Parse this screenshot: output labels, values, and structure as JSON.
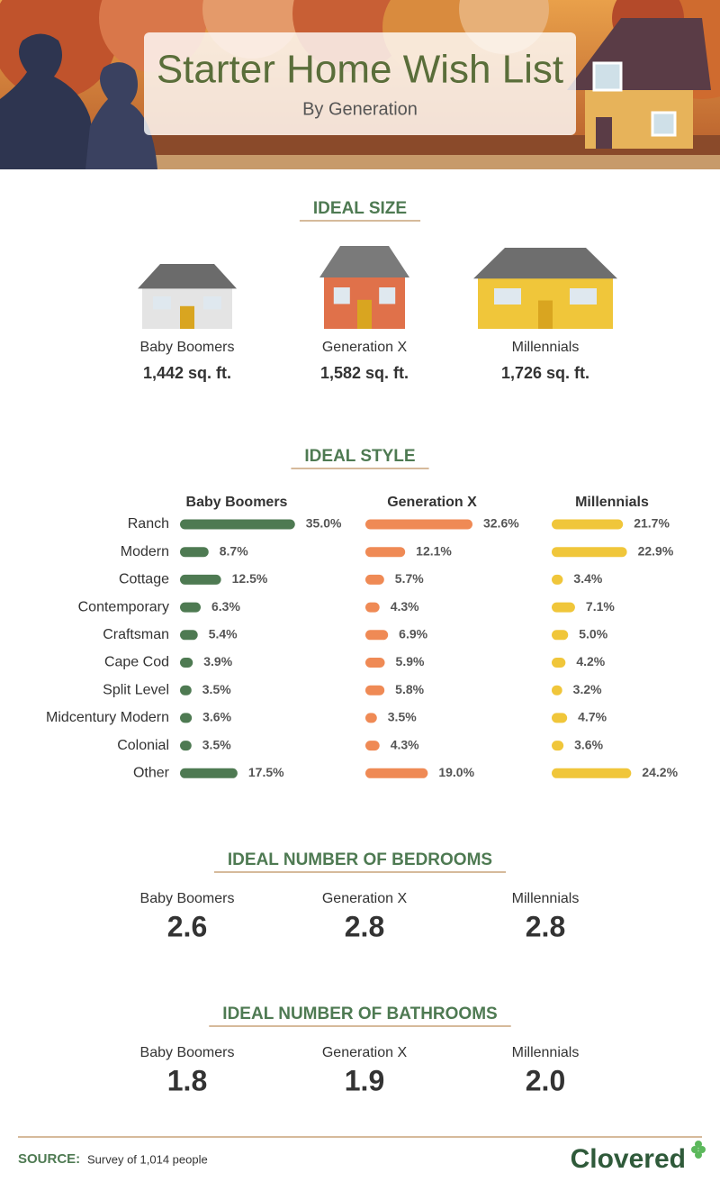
{
  "header": {
    "title": "Starter Home Wish List",
    "subtitle": "By Generation"
  },
  "ideal_size": {
    "heading": "IDEAL SIZE",
    "items": [
      {
        "name": "Baby Boomers",
        "value": "1,442 sq. ft."
      },
      {
        "name": "Generation X",
        "value": "1,582 sq. ft."
      },
      {
        "name": "Millennials",
        "value": "1,726 sq. ft."
      }
    ]
  },
  "chart_data": {
    "type": "bar",
    "orientation": "horizontal",
    "title": "IDEAL STYLE",
    "categories": [
      "Ranch",
      "Modern",
      "Cottage",
      "Contemporary",
      "Craftsman",
      "Cape Cod",
      "Split Level",
      "Midcentury Modern",
      "Colonial",
      "Other"
    ],
    "series": [
      {
        "name": "Baby Boomers",
        "color": "#4e7a52",
        "values": [
          35.0,
          8.7,
          12.5,
          6.3,
          5.4,
          3.9,
          3.5,
          3.6,
          3.5,
          17.5
        ],
        "value_labels": [
          "35.0%",
          "8.7%",
          "12.5%",
          "6.3%",
          "5.4%",
          "3.9%",
          "3.5%",
          "3.6%",
          "3.5%",
          "17.5%"
        ]
      },
      {
        "name": "Generation X",
        "color": "#ef8a55",
        "values": [
          32.6,
          12.1,
          5.7,
          4.3,
          6.9,
          5.9,
          5.8,
          3.5,
          4.3,
          19.0
        ],
        "value_labels": [
          "32.6%",
          "12.1%",
          "5.7%",
          "4.3%",
          "6.9%",
          "5.9%",
          "5.8%",
          "3.5%",
          "4.3%",
          "19.0%"
        ]
      },
      {
        "name": "Millennials",
        "color": "#f0c63a",
        "values": [
          21.7,
          22.9,
          3.4,
          7.1,
          5.0,
          4.2,
          3.2,
          4.7,
          3.6,
          24.2
        ],
        "value_labels": [
          "21.7%",
          "22.9%",
          "3.4%",
          "7.1%",
          "5.0%",
          "4.2%",
          "3.2%",
          "4.7%",
          "3.6%",
          "24.2%"
        ]
      }
    ]
  },
  "bedrooms": {
    "heading": "IDEAL NUMBER OF BEDROOMS",
    "items": [
      {
        "name": "Baby Boomers",
        "value": "2.6"
      },
      {
        "name": "Generation X",
        "value": "2.8"
      },
      {
        "name": "Millennials",
        "value": "2.8"
      }
    ]
  },
  "bathrooms": {
    "heading": "IDEAL NUMBER OF BATHROOMS",
    "items": [
      {
        "name": "Baby Boomers",
        "value": "1.8"
      },
      {
        "name": "Generation X",
        "value": "1.9"
      },
      {
        "name": "Millennials",
        "value": "2.0"
      }
    ]
  },
  "footer": {
    "source_label": "SOURCE:",
    "source": "Survey of 1,014 people",
    "logo": "Clovered"
  }
}
